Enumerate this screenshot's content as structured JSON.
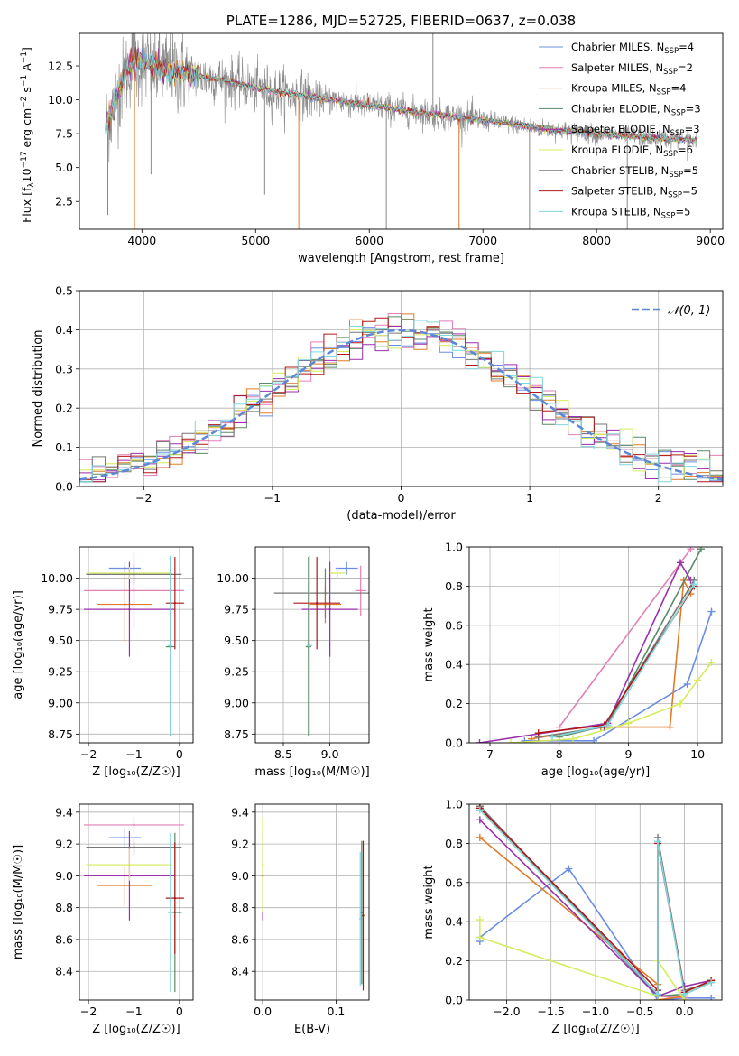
{
  "colors": {
    "Chabrier MILES": "#6b8de3",
    "Salpeter MILES": "#e37fb7",
    "Kroupa MILES": "#e07b28",
    "Chabrier ELODIE": "#5a8a66",
    "Salpeter ELODIE": "#9b2fae",
    "Kroupa ELODIE": "#d4ec5c",
    "Chabrier STELIB": "#777777",
    "Salpeter STELIB": "#b01818",
    "Kroupa STELIB": "#7fd6dc",
    "normal": "#5b87d6",
    "data": "#8a8a8a"
  },
  "chart_data": [
    {
      "id": "spectrum",
      "type": "line",
      "title": "PLATE=1286, MJD=52725, FIBERID=0637, z=0.038",
      "xlabel": "wavelength [Angstrom, rest frame]",
      "ylabel_parts": [
        "Flux [f",
        "λ",
        "10",
        "−17",
        " erg cm",
        "−2",
        " s",
        "−1",
        " A",
        "−1",
        "]"
      ],
      "xlim": [
        3450,
        9110
      ],
      "ylim": [
        0.45,
        14.9
      ],
      "xticks": [
        4000,
        5000,
        6000,
        7000,
        8000,
        9000
      ],
      "yticks": [
        2.5,
        5.0,
        7.5,
        10.0,
        12.5
      ],
      "ytick_labels": [
        "2.5",
        "5.0",
        "7.5",
        "10.0",
        "12.5"
      ],
      "continuum": {
        "x": [
          3680,
          3750,
          3800,
          3900,
          4000,
          4100,
          4200,
          4400,
          4600,
          4800,
          5000,
          5200,
          5500,
          6000,
          6500,
          7000,
          7500,
          8000,
          8500,
          8900
        ],
        "y": [
          8.0,
          9.5,
          10.8,
          12.6,
          12.8,
          12.4,
          12.2,
          11.9,
          11.6,
          11.3,
          10.9,
          10.6,
          10.2,
          9.6,
          9.0,
          8.5,
          7.9,
          7.5,
          7.2,
          7.0
        ]
      },
      "spikes": [
        {
          "x": 3700,
          "y": 1.5
        },
        {
          "x": 3935,
          "y": 0.4
        },
        {
          "x": 4080,
          "y": 4.5
        },
        {
          "x": 5080,
          "y": 3.0
        },
        {
          "x": 5380,
          "y": 0.4
        },
        {
          "x": 6150,
          "y": 0.4
        },
        {
          "x": 6560,
          "y": 15.0
        },
        {
          "x": 6790,
          "y": 0.4
        },
        {
          "x": 7410,
          "y": 0.4
        },
        {
          "x": 8270,
          "y": 0.4
        },
        {
          "x": 8800,
          "y": 5.5
        }
      ],
      "legend": [
        {
          "label": "Chabrier MILES, N",
          "sub": "SSP",
          "n": "=4"
        },
        {
          "label": "Salpeter MILES, N",
          "sub": "SSP",
          "n": "=2"
        },
        {
          "label": "Kroupa MILES, N",
          "sub": "SSP",
          "n": "=4"
        },
        {
          "label": "Chabrier ELODIE, N",
          "sub": "SSP",
          "n": "=3"
        },
        {
          "label": "Salpeter ELODIE, N",
          "sub": "SSP",
          "n": "=3"
        },
        {
          "label": "Kroupa ELODIE, N",
          "sub": "SSP",
          "n": "=6"
        },
        {
          "label": "Chabrier STELIB, N",
          "sub": "SSP",
          "n": "=5"
        },
        {
          "label": "Salpeter STELIB, N",
          "sub": "SSP",
          "n": "=5"
        },
        {
          "label": "Kroupa STELIB, N",
          "sub": "SSP",
          "n": "=5"
        }
      ]
    },
    {
      "id": "residuals",
      "type": "area",
      "xlabel": "(data-model)/error",
      "ylabel": "Normed distribution",
      "xlim": [
        -2.5,
        2.5
      ],
      "ylim": [
        0,
        0.5
      ],
      "xticks": [
        -2,
        -1,
        0,
        1,
        2
      ],
      "xtick_labels": [
        "−2",
        "−1",
        "0",
        "1",
        "2"
      ],
      "yticks": [
        0,
        0.1,
        0.2,
        0.3,
        0.4,
        0.5
      ],
      "ytick_labels": [
        "0.0",
        "0.1",
        "0.2",
        "0.3",
        "0.4",
        "0.5"
      ],
      "legend_label": "𝒩(0, 1)",
      "grid": true
    },
    {
      "id": "age-vs-Z",
      "type": "scatter",
      "xlabel": "Z [log₁₀(Z/Z☉)]",
      "ylabel": "age  [log₁₀(age/yr)]",
      "xlim": [
        -2.2,
        0.3
      ],
      "ylim": [
        8.68,
        10.25
      ],
      "xticks": [
        -2,
        -1,
        0
      ],
      "xtick_labels": [
        "−2",
        "−1",
        "0"
      ],
      "yticks": [
        8.75,
        9.0,
        9.25,
        9.5,
        9.75,
        10.0
      ],
      "ytick_labels": [
        "8.75",
        "9.00",
        "9.25",
        "9.50",
        "9.75",
        "10.00"
      ],
      "points": [
        {
          "model": "Chabrier MILES",
          "x": -1.2,
          "xerr": 0.35,
          "y": 10.08,
          "yerr": 0.05
        },
        {
          "model": "Salpeter MILES",
          "x": -1.0,
          "xerr": 1.1,
          "y": 9.9,
          "yerr": 0.3
        },
        {
          "model": "Kroupa MILES",
          "x": -1.2,
          "xerr": 0.6,
          "y": 9.79,
          "yerr": 0.3
        },
        {
          "model": "Chabrier ELODIE",
          "x": -0.2,
          "xerr": 0.1,
          "y": 9.45,
          "yerr": 0.72
        },
        {
          "model": "Salpeter ELODIE",
          "x": -1.1,
          "xerr": 1.0,
          "y": 9.75,
          "yerr": 0.38
        },
        {
          "model": "Kroupa ELODIE",
          "x": -1.1,
          "xerr": 0.95,
          "y": 10.04,
          "yerr": 0.05
        },
        {
          "model": "Chabrier STELIB",
          "x": -1.0,
          "xerr": 1.05,
          "y": 10.03,
          "yerr": 0.08
        },
        {
          "model": "Salpeter STELIB",
          "x": -0.1,
          "xerr": 0.2,
          "y": 9.8,
          "yerr": 0.37
        },
        {
          "model": "Kroupa STELIB",
          "x": -0.2,
          "xerr": 0.05,
          "y": 9.46,
          "yerr": 0.72
        }
      ]
    },
    {
      "id": "age-vs-mass",
      "type": "scatter",
      "xlabel": "mass [log₁₀(M/M☉)]",
      "ylabel": "",
      "xlim": [
        8.2,
        9.42
      ],
      "ylim": [
        8.68,
        10.25
      ],
      "xticks": [
        8.5,
        9.0
      ],
      "xtick_labels": [
        "8.5",
        "9.0"
      ],
      "yticks": [
        8.75,
        9.0,
        9.25,
        9.5,
        9.75,
        10.0
      ],
      "ytick_labels": [
        "8.75",
        "9.00",
        "9.25",
        "9.50",
        "9.75",
        "10.00"
      ],
      "points": [
        {
          "model": "Chabrier MILES",
          "x": 9.18,
          "xerr": 0.12,
          "y": 10.08,
          "yerr": 0.05
        },
        {
          "model": "Salpeter MILES",
          "x": 9.33,
          "xerr": 0.06,
          "y": 9.9,
          "yerr": 0.2
        },
        {
          "model": "Kroupa MILES",
          "x": 8.95,
          "xerr": 0.17,
          "y": 9.79,
          "yerr": 0.15
        },
        {
          "model": "Chabrier ELODIE",
          "x": 8.77,
          "xerr": 0.03,
          "y": 9.45,
          "yerr": 0.72
        },
        {
          "model": "Salpeter ELODIE",
          "x": 9.0,
          "xerr": 0.3,
          "y": 9.75,
          "yerr": 0.38
        },
        {
          "model": "Kroupa ELODIE",
          "x": 9.08,
          "xerr": 0.08,
          "y": 10.04,
          "yerr": 0.05
        },
        {
          "model": "Chabrier STELIB",
          "x": 8.95,
          "xerr": 0.55,
          "y": 9.88,
          "yerr": 0.2
        },
        {
          "model": "Salpeter STELIB",
          "x": 8.86,
          "xerr": 0.25,
          "y": 9.8,
          "yerr": 0.37
        },
        {
          "model": "Kroupa STELIB",
          "x": 8.78,
          "xerr": 0.03,
          "y": 9.46,
          "yerr": 0.72
        }
      ]
    },
    {
      "id": "mass-weight-vs-age",
      "type": "line",
      "xlabel": "age  [log₁₀(age/yr)]",
      "ylabel": "mass weight",
      "xlim": [
        6.7,
        10.35
      ],
      "ylim": [
        0,
        1.0
      ],
      "xticks": [
        7,
        8,
        9,
        10
      ],
      "xtick_labels": [
        "7",
        "8",
        "9",
        "10"
      ],
      "yticks": [
        0,
        0.2,
        0.4,
        0.6,
        0.8,
        1.0
      ],
      "ytick_labels": [
        "0.0",
        "0.2",
        "0.4",
        "0.6",
        "0.8",
        "1.0"
      ],
      "series": [
        {
          "model": "Chabrier MILES",
          "x": [
            7.5,
            8.5,
            9.85,
            10.2
          ],
          "y": [
            0.01,
            0.01,
            0.3,
            0.67
          ]
        },
        {
          "model": "Salpeter MILES",
          "x": [
            8.0,
            9.9
          ],
          "y": [
            0.08,
            0.99
          ]
        },
        {
          "model": "Kroupa MILES",
          "x": [
            7.6,
            8.6,
            9.6,
            9.8,
            9.9
          ],
          "y": [
            0.02,
            0.08,
            0.08,
            0.83,
            0.76
          ]
        },
        {
          "model": "Chabrier ELODIE",
          "x": [
            8.0,
            8.7,
            10.05
          ],
          "y": [
            0.03,
            0.09,
            0.99
          ]
        },
        {
          "model": "Salpeter ELODIE",
          "x": [
            6.85,
            8.7,
            9.75,
            9.9
          ],
          "y": [
            0.0,
            0.1,
            0.92,
            0.83
          ]
        },
        {
          "model": "Kroupa ELODIE",
          "x": [
            7.3,
            8.2,
            9.0,
            9.75,
            10.0,
            10.2
          ],
          "y": [
            0.0,
            0.02,
            0.1,
            0.2,
            0.32,
            0.41
          ]
        },
        {
          "model": "Chabrier STELIB",
          "x": [
            7.7,
            8.65,
            9.95
          ],
          "y": [
            0.03,
            0.08,
            0.83
          ]
        },
        {
          "model": "Salpeter STELIB",
          "x": [
            7.7,
            8.65,
            9.95
          ],
          "y": [
            0.05,
            0.09,
            0.8
          ]
        },
        {
          "model": "Kroupa STELIB",
          "x": [
            7.9,
            8.7,
            9.95
          ],
          "y": [
            0.03,
            0.09,
            0.81
          ]
        }
      ]
    },
    {
      "id": "mass-vs-Z",
      "type": "scatter",
      "xlabel": "Z [log₁₀(Z/Z☉)]",
      "ylabel": "mass [log₁₀(M/M☉)]",
      "xlim": [
        -2.2,
        0.3
      ],
      "ylim": [
        8.22,
        9.45
      ],
      "xticks": [
        -2,
        -1,
        0
      ],
      "xtick_labels": [
        "−2",
        "−1",
        "0"
      ],
      "yticks": [
        8.4,
        8.6,
        8.8,
        9.0,
        9.2,
        9.4
      ],
      "ytick_labels": [
        "8.4",
        "8.6",
        "8.8",
        "9.0",
        "9.2",
        "9.4"
      ],
      "points": [
        {
          "model": "Chabrier MILES",
          "x": -1.2,
          "xerr": 0.35,
          "y": 9.24,
          "yerr": 0.06
        },
        {
          "model": "Salpeter MILES",
          "x": -1.0,
          "xerr": 1.1,
          "y": 9.32,
          "yerr": 0.05
        },
        {
          "model": "Kroupa MILES",
          "x": -1.2,
          "xerr": 0.6,
          "y": 8.94,
          "yerr": 0.13
        },
        {
          "model": "Chabrier ELODIE",
          "x": -0.1,
          "xerr": 0.15,
          "y": 8.77,
          "yerr": 0.5
        },
        {
          "model": "Salpeter ELODIE",
          "x": -1.1,
          "xerr": 1.0,
          "y": 9.0,
          "yerr": 0.28
        },
        {
          "model": "Kroupa ELODIE",
          "x": -1.1,
          "xerr": 0.95,
          "y": 9.07,
          "yerr": 0.1
        },
        {
          "model": "Chabrier STELIB",
          "x": -1.0,
          "xerr": 1.05,
          "y": 9.18,
          "yerr": 0.05
        },
        {
          "model": "Salpeter STELIB",
          "x": -0.1,
          "xerr": 0.2,
          "y": 8.86,
          "yerr": 0.35
        },
        {
          "model": "Kroupa STELIB",
          "x": -0.2,
          "xerr": 0.05,
          "y": 8.77,
          "yerr": 0.5
        }
      ]
    },
    {
      "id": "mass-vs-ebv",
      "type": "scatter",
      "xlabel": "E(B-V)",
      "ylabel": "",
      "xlim": [
        -0.01,
        0.145
      ],
      "ylim": [
        8.22,
        9.45
      ],
      "xticks": [
        0.0,
        0.1
      ],
      "xtick_labels": [
        "0.0",
        "0.1"
      ],
      "yticks": [
        8.4,
        8.6,
        8.8,
        9.0,
        9.2,
        9.4
      ],
      "ytick_labels": [
        "8.4",
        "8.6",
        "8.8",
        "9.0",
        "9.2",
        "9.4"
      ],
      "points": [
        {
          "model": "Salpeter ELODIE",
          "x": 0.0,
          "xerr": 0,
          "y": 9.0,
          "yerr": 0.28
        },
        {
          "model": "Kroupa ELODIE",
          "x": 0.0,
          "xerr": 0,
          "y": 9.07,
          "yerr": 0.3
        },
        {
          "model": "Kroupa STELIB",
          "x": 0.133,
          "xerr": 0,
          "y": 8.73,
          "yerr": 0.42
        },
        {
          "model": "Chabrier ELODIE",
          "x": 0.135,
          "xerr": 0,
          "y": 8.77,
          "yerr": 0.45
        },
        {
          "model": "Salpeter STELIB",
          "x": 0.137,
          "xerr": 0,
          "y": 8.75,
          "yerr": 0.47
        }
      ]
    },
    {
      "id": "mass-weight-vs-Z",
      "type": "line",
      "xlabel": "Z [log₁₀(Z/Z☉)]",
      "ylabel": "mass weight",
      "xlim": [
        -2.42,
        0.42
      ],
      "ylim": [
        0,
        1.0
      ],
      "xticks": [
        -2.0,
        -1.5,
        -1.0,
        -0.5,
        0.0
      ],
      "xtick_labels": [
        "−2.0",
        "−1.5",
        "−1.0",
        "−0.5",
        "0.0"
      ],
      "yticks": [
        0,
        0.2,
        0.4,
        0.6,
        0.8,
        1.0
      ],
      "ytick_labels": [
        "0.0",
        "0.2",
        "0.4",
        "0.6",
        "0.8",
        "1.0"
      ],
      "series": [
        {
          "model": "Chabrier MILES",
          "x": [
            -2.3,
            -2.3,
            -1.3,
            -0.3,
            0.0,
            0.3
          ],
          "y": [
            0.3,
            0.32,
            0.67,
            0.0,
            0.01,
            0.01
          ]
        },
        {
          "model": "Salpeter MILES",
          "x": [
            -2.3,
            -0.3,
            0.0
          ],
          "y": [
            0.99,
            0.02,
            0.01
          ]
        },
        {
          "model": "Kroupa MILES",
          "x": [
            -2.3,
            -0.3,
            -0.3,
            0.0
          ],
          "y": [
            0.83,
            0.08,
            0.0,
            0.02
          ]
        },
        {
          "model": "Chabrier ELODIE",
          "x": [
            -2.3,
            -0.3,
            0.0,
            0.3
          ],
          "y": [
            0.99,
            0.02,
            0.03,
            0.09
          ]
        },
        {
          "model": "Salpeter ELODIE",
          "x": [
            -2.3,
            -0.3,
            0.0,
            0.3
          ],
          "y": [
            0.92,
            0.02,
            0.07,
            0.1
          ]
        },
        {
          "model": "Kroupa ELODIE",
          "x": [
            -2.3,
            -2.3,
            -0.3,
            -0.3,
            0.0
          ],
          "y": [
            0.41,
            0.32,
            0.02,
            0.2,
            0.0
          ]
        },
        {
          "model": "Chabrier STELIB",
          "x": [
            -2.3,
            -0.3,
            -0.3,
            0.0,
            0.3
          ],
          "y": [
            0.99,
            0.03,
            0.83,
            0.05,
            0.09
          ]
        },
        {
          "model": "Salpeter STELIB",
          "x": [
            -2.3,
            -0.3,
            -0.3,
            0.0,
            0.3
          ],
          "y": [
            0.98,
            0.05,
            0.8,
            0.04,
            0.1
          ]
        },
        {
          "model": "Kroupa STELIB",
          "x": [
            -2.3,
            -0.3,
            -0.3,
            0.0,
            0.3
          ],
          "y": [
            0.97,
            0.03,
            0.81,
            0.03,
            0.09
          ]
        }
      ]
    }
  ]
}
